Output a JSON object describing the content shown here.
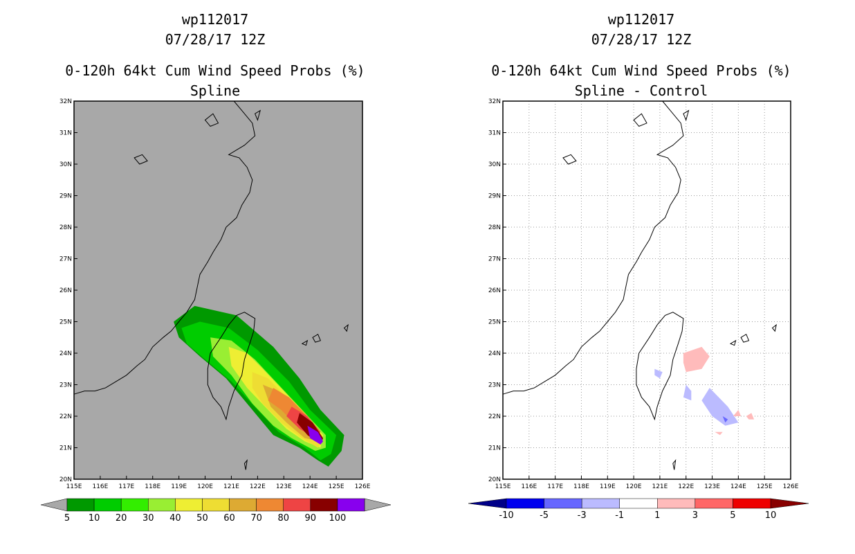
{
  "chart_data": [
    {
      "type": "heatmap",
      "title_lines": [
        "wp112017",
        "07/28/17 12Z",
        "0-120h 64kt Cum Wind Speed Probs (%)",
        "Spline"
      ],
      "xlabel": "",
      "ylabel": "",
      "xlim": [
        115,
        126
      ],
      "ylim": [
        20,
        32
      ],
      "x_ticks": [
        "115E",
        "116E",
        "117E",
        "118E",
        "119E",
        "120E",
        "121E",
        "122E",
        "123E",
        "124E",
        "125E",
        "126E"
      ],
      "y_ticks": [
        "20N",
        "21N",
        "22N",
        "23N",
        "24N",
        "25N",
        "26N",
        "27N",
        "28N",
        "29N",
        "30N",
        "31N",
        "32N"
      ],
      "background_color": "#a8a8a8",
      "colorbar": {
        "labels": [
          "5",
          "10",
          "20",
          "30",
          "40",
          "50",
          "60",
          "70",
          "80",
          "90",
          "100"
        ],
        "colors": [
          "#009900",
          "#00cc00",
          "#33ee00",
          "#99ee33",
          "#eeee33",
          "#eedd33",
          "#ddaa33",
          "#ee8833",
          "#ee4444",
          "#880000",
          "#8800ee"
        ],
        "ends": "#a8a8a8"
      },
      "contours": [
        {
          "level": 5,
          "color": "#009900",
          "points": [
            [
              118.8,
              25.0
            ],
            [
              119.6,
              25.5
            ],
            [
              121.2,
              25.2
            ],
            [
              122.6,
              24.2
            ],
            [
              123.6,
              23.2
            ],
            [
              124.4,
              22.2
            ],
            [
              125.3,
              21.4
            ],
            [
              125.2,
              20.9
            ],
            [
              124.7,
              20.4
            ],
            [
              124.3,
              20.6
            ],
            [
              123.6,
              21.0
            ],
            [
              122.6,
              21.4
            ],
            [
              121.8,
              22.2
            ],
            [
              120.8,
              23.2
            ],
            [
              119.8,
              23.9
            ],
            [
              119.0,
              24.5
            ]
          ]
        },
        {
          "level": 10,
          "color": "#00cc00",
          "points": [
            [
              119.1,
              24.8
            ],
            [
              119.8,
              25.0
            ],
            [
              120.9,
              24.8
            ],
            [
              122.0,
              24.1
            ],
            [
              123.2,
              23.1
            ],
            [
              124.0,
              22.2
            ],
            [
              125.0,
              21.4
            ],
            [
              124.8,
              20.8
            ],
            [
              124.4,
              20.6
            ],
            [
              123.8,
              21.0
            ],
            [
              122.8,
              21.5
            ],
            [
              122.0,
              22.2
            ],
            [
              121.0,
              23.1
            ],
            [
              120.0,
              23.8
            ],
            [
              119.3,
              24.3
            ]
          ]
        },
        {
          "level": 20,
          "color": "#99ee33",
          "points": [
            [
              120.2,
              24.5
            ],
            [
              121.0,
              24.4
            ],
            [
              121.9,
              23.8
            ],
            [
              122.8,
              23.0
            ],
            [
              123.7,
              22.2
            ],
            [
              124.6,
              21.4
            ],
            [
              124.6,
              21.0
            ],
            [
              124.2,
              20.9
            ],
            [
              123.3,
              21.3
            ],
            [
              122.6,
              21.7
            ],
            [
              121.8,
              22.4
            ],
            [
              121.0,
              23.3
            ],
            [
              120.3,
              23.9
            ]
          ]
        },
        {
          "level": 30,
          "color": "#eeee33",
          "points": [
            [
              120.9,
              24.2
            ],
            [
              121.6,
              24.0
            ],
            [
              122.2,
              23.5
            ],
            [
              123.0,
              22.8
            ],
            [
              123.8,
              22.1
            ],
            [
              124.5,
              21.4
            ],
            [
              124.4,
              21.0
            ],
            [
              123.8,
              21.2
            ],
            [
              123.1,
              21.6
            ],
            [
              122.4,
              22.2
            ],
            [
              121.6,
              22.9
            ],
            [
              121.0,
              23.6
            ]
          ]
        },
        {
          "level": 40,
          "color": "#eedd33",
          "points": [
            [
              121.8,
              23.4
            ],
            [
              122.4,
              23.2
            ],
            [
              123.1,
              22.6
            ],
            [
              123.9,
              21.9
            ],
            [
              124.5,
              21.3
            ],
            [
              124.3,
              21.0
            ],
            [
              123.7,
              21.3
            ],
            [
              122.9,
              21.8
            ],
            [
              122.2,
              22.4
            ],
            [
              121.8,
              22.9
            ]
          ]
        },
        {
          "level": 50,
          "color": "#ddaa33",
          "points": [
            [
              122.2,
              23.0
            ],
            [
              122.8,
              22.8
            ],
            [
              123.4,
              22.3
            ],
            [
              124.1,
              21.7
            ],
            [
              124.4,
              21.2
            ],
            [
              123.8,
              21.3
            ],
            [
              123.1,
              21.8
            ],
            [
              122.5,
              22.3
            ]
          ]
        },
        {
          "level": 60,
          "color": "#ee8833",
          "points": [
            [
              122.6,
              22.9
            ],
            [
              123.2,
              22.6
            ],
            [
              123.9,
              22.0
            ],
            [
              124.4,
              21.4
            ],
            [
              124.1,
              21.3
            ],
            [
              123.5,
              21.7
            ],
            [
              122.9,
              22.2
            ],
            [
              122.4,
              22.5
            ]
          ]
        },
        {
          "level": 70,
          "color": "#ee4444",
          "points": [
            [
              123.3,
              22.3
            ],
            [
              123.9,
              22.0
            ],
            [
              124.4,
              21.5
            ],
            [
              124.2,
              21.3
            ],
            [
              123.6,
              21.6
            ],
            [
              123.1,
              22.0
            ]
          ]
        },
        {
          "level": 80,
          "color": "#880000",
          "points": [
            [
              123.6,
              22.1
            ],
            [
              124.1,
              21.8
            ],
            [
              124.5,
              21.3
            ],
            [
              124.4,
              21.1
            ],
            [
              123.9,
              21.4
            ],
            [
              123.5,
              21.8
            ]
          ]
        },
        {
          "level": 100,
          "color": "#8800ee",
          "points": [
            [
              123.9,
              21.7
            ],
            [
              124.3,
              21.5
            ],
            [
              124.5,
              21.2
            ],
            [
              124.4,
              21.1
            ],
            [
              124.0,
              21.3
            ]
          ]
        }
      ]
    },
    {
      "type": "heatmap",
      "title_lines": [
        "wp112017",
        "07/28/17 12Z",
        "0-120h 64kt Cum Wind Speed Probs (%)",
        "Spline - Control"
      ],
      "xlabel": "",
      "ylabel": "",
      "xlim": [
        115,
        126
      ],
      "ylim": [
        20,
        32
      ],
      "x_ticks": [
        "115E",
        "116E",
        "117E",
        "118E",
        "119E",
        "120E",
        "121E",
        "122E",
        "123E",
        "124E",
        "125E",
        "126E"
      ],
      "y_ticks": [
        "20N",
        "21N",
        "22N",
        "23N",
        "24N",
        "25N",
        "26N",
        "27N",
        "28N",
        "29N",
        "30N",
        "31N",
        "32N"
      ],
      "background_color": "#ffffff",
      "grid": true,
      "colorbar": {
        "labels": [
          "-10",
          "-5",
          "-3",
          "-1",
          "1",
          "3",
          "5",
          "10"
        ],
        "colors": [
          "#0000ee",
          "#6666ff",
          "#bbbbff",
          "#ffffff",
          "#ffbbbb",
          "#ff6666",
          "#ee0000"
        ],
        "left_end": "#000088",
        "right_end": "#880000"
      },
      "contours": [
        {
          "level": 3,
          "color": "#ffbbbb",
          "points": [
            [
              121.9,
              24.0
            ],
            [
              122.6,
              24.2
            ],
            [
              122.9,
              23.9
            ],
            [
              122.6,
              23.5
            ],
            [
              122.0,
              23.4
            ],
            [
              121.9,
              23.7
            ]
          ]
        },
        {
          "level": -3,
          "color": "#bbbbff",
          "points": [
            [
              120.8,
              23.5
            ],
            [
              121.1,
              23.4
            ],
            [
              121.0,
              23.2
            ],
            [
              120.8,
              23.3
            ]
          ]
        },
        {
          "level": -3,
          "color": "#bbbbff",
          "points": [
            [
              122.0,
              23.0
            ],
            [
              122.2,
              22.8
            ],
            [
              122.2,
              22.5
            ],
            [
              121.9,
              22.6
            ]
          ]
        },
        {
          "level": -3,
          "color": "#bbbbff",
          "points": [
            [
              122.6,
              22.5
            ],
            [
              122.9,
              22.9
            ],
            [
              123.6,
              22.3
            ],
            [
              124.0,
              21.8
            ],
            [
              123.5,
              21.7
            ],
            [
              123.0,
              22.0
            ]
          ]
        },
        {
          "level": -5,
          "color": "#6666ff",
          "points": [
            [
              123.4,
              22.0
            ],
            [
              123.6,
              21.9
            ],
            [
              123.5,
              21.8
            ]
          ]
        },
        {
          "level": 3,
          "color": "#ffbbbb",
          "points": [
            [
              123.8,
              22.0
            ],
            [
              124.0,
              22.2
            ],
            [
              124.1,
              22.0
            ]
          ]
        },
        {
          "level": 3,
          "color": "#ffbbbb",
          "points": [
            [
              124.3,
              22.0
            ],
            [
              124.5,
              22.1
            ],
            [
              124.6,
              21.9
            ],
            [
              124.4,
              21.9
            ]
          ]
        },
        {
          "level": 3,
          "color": "#ffbbbb",
          "points": [
            [
              123.1,
              21.5
            ],
            [
              123.4,
              21.5
            ],
            [
              123.3,
              21.4
            ]
          ]
        }
      ]
    }
  ]
}
